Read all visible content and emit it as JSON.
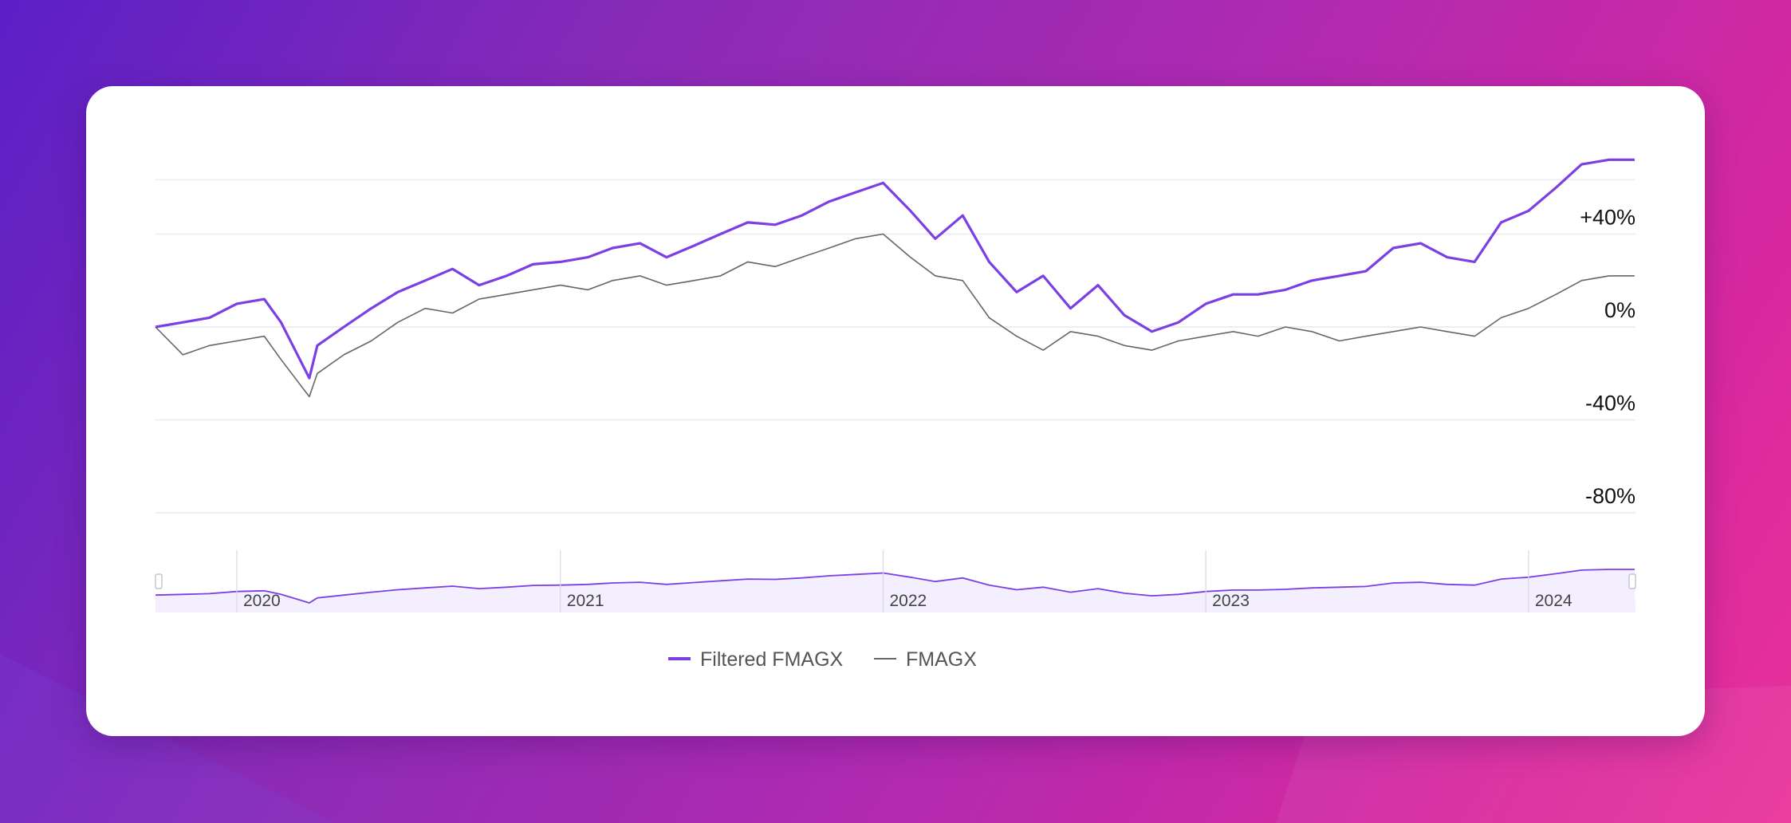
{
  "colors": {
    "accent": "#7b3fe4",
    "secondary": "#666666",
    "grid": "#e9e9ee",
    "navigator_fill": "#f4efff"
  },
  "legend": {
    "items": [
      {
        "label": "Filtered FMAGX",
        "color": "#7b3fe4"
      },
      {
        "label": "FMAGX",
        "color": "#666666"
      }
    ]
  },
  "chart_data": {
    "type": "line",
    "title": "",
    "xlabel": "",
    "ylabel": "",
    "ylim": [
      -100,
      60
    ],
    "yticks": [
      {
        "value": 40,
        "label": "+40%"
      },
      {
        "value": 0,
        "label": "0%"
      },
      {
        "value": -40,
        "label": "-40%"
      },
      {
        "value": -80,
        "label": "-80%"
      }
    ],
    "xlim": [
      "2019-10-01",
      "2024-05-01"
    ],
    "navigator_ticks": [
      {
        "date": "2020-01-01",
        "label": "2020"
      },
      {
        "date": "2021-01-01",
        "label": "2021"
      },
      {
        "date": "2022-01-01",
        "label": "2022"
      },
      {
        "date": "2023-01-01",
        "label": "2023"
      },
      {
        "date": "2024-01-01",
        "label": "2024"
      }
    ],
    "grid": true,
    "legend_position": "bottom-center",
    "x": [
      "2019-10-01",
      "2019-11-01",
      "2019-12-01",
      "2020-01-01",
      "2020-02-01",
      "2020-02-20",
      "2020-03-23",
      "2020-04-01",
      "2020-05-01",
      "2020-06-01",
      "2020-07-01",
      "2020-08-01",
      "2020-09-01",
      "2020-10-01",
      "2020-11-01",
      "2020-12-01",
      "2021-01-01",
      "2021-02-01",
      "2021-03-01",
      "2021-04-01",
      "2021-05-01",
      "2021-06-01",
      "2021-07-01",
      "2021-08-01",
      "2021-09-01",
      "2021-10-01",
      "2021-11-01",
      "2021-12-01",
      "2022-01-01",
      "2022-02-01",
      "2022-03-01",
      "2022-04-01",
      "2022-05-01",
      "2022-06-01",
      "2022-07-01",
      "2022-08-01",
      "2022-09-01",
      "2022-10-01",
      "2022-11-01",
      "2022-12-01",
      "2023-01-01",
      "2023-02-01",
      "2023-03-01",
      "2023-04-01",
      "2023-05-01",
      "2023-06-01",
      "2023-07-01",
      "2023-08-01",
      "2023-09-01",
      "2023-10-01",
      "2023-11-01",
      "2023-12-01",
      "2024-01-01",
      "2024-02-01",
      "2024-03-01",
      "2024-04-01",
      "2024-04-30"
    ],
    "series": [
      {
        "name": "Filtered FMAGX",
        "values": [
          0,
          2,
          4,
          10,
          12,
          2,
          -22,
          -8,
          0,
          8,
          15,
          20,
          25,
          18,
          22,
          27,
          28,
          30,
          34,
          36,
          30,
          35,
          40,
          45,
          44,
          48,
          54,
          58,
          62,
          50,
          38,
          48,
          28,
          15,
          22,
          8,
          18,
          5,
          -2,
          2,
          10,
          14,
          14,
          16,
          20,
          22,
          24,
          34,
          36,
          30,
          28,
          45,
          50,
          60,
          70,
          72,
          72
        ]
      },
      {
        "name": "FMAGX",
        "values": [
          0,
          -12,
          -8,
          -6,
          -4,
          -14,
          -30,
          -20,
          -12,
          -6,
          2,
          8,
          6,
          12,
          14,
          16,
          18,
          16,
          20,
          22,
          18,
          20,
          22,
          28,
          26,
          30,
          34,
          38,
          40,
          30,
          22,
          20,
          4,
          -4,
          -10,
          -2,
          -4,
          -8,
          -10,
          -6,
          -4,
          -2,
          -4,
          0,
          -2,
          -6,
          -4,
          -2,
          0,
          -2,
          -4,
          4,
          8,
          14,
          20,
          22,
          22
        ]
      }
    ]
  }
}
